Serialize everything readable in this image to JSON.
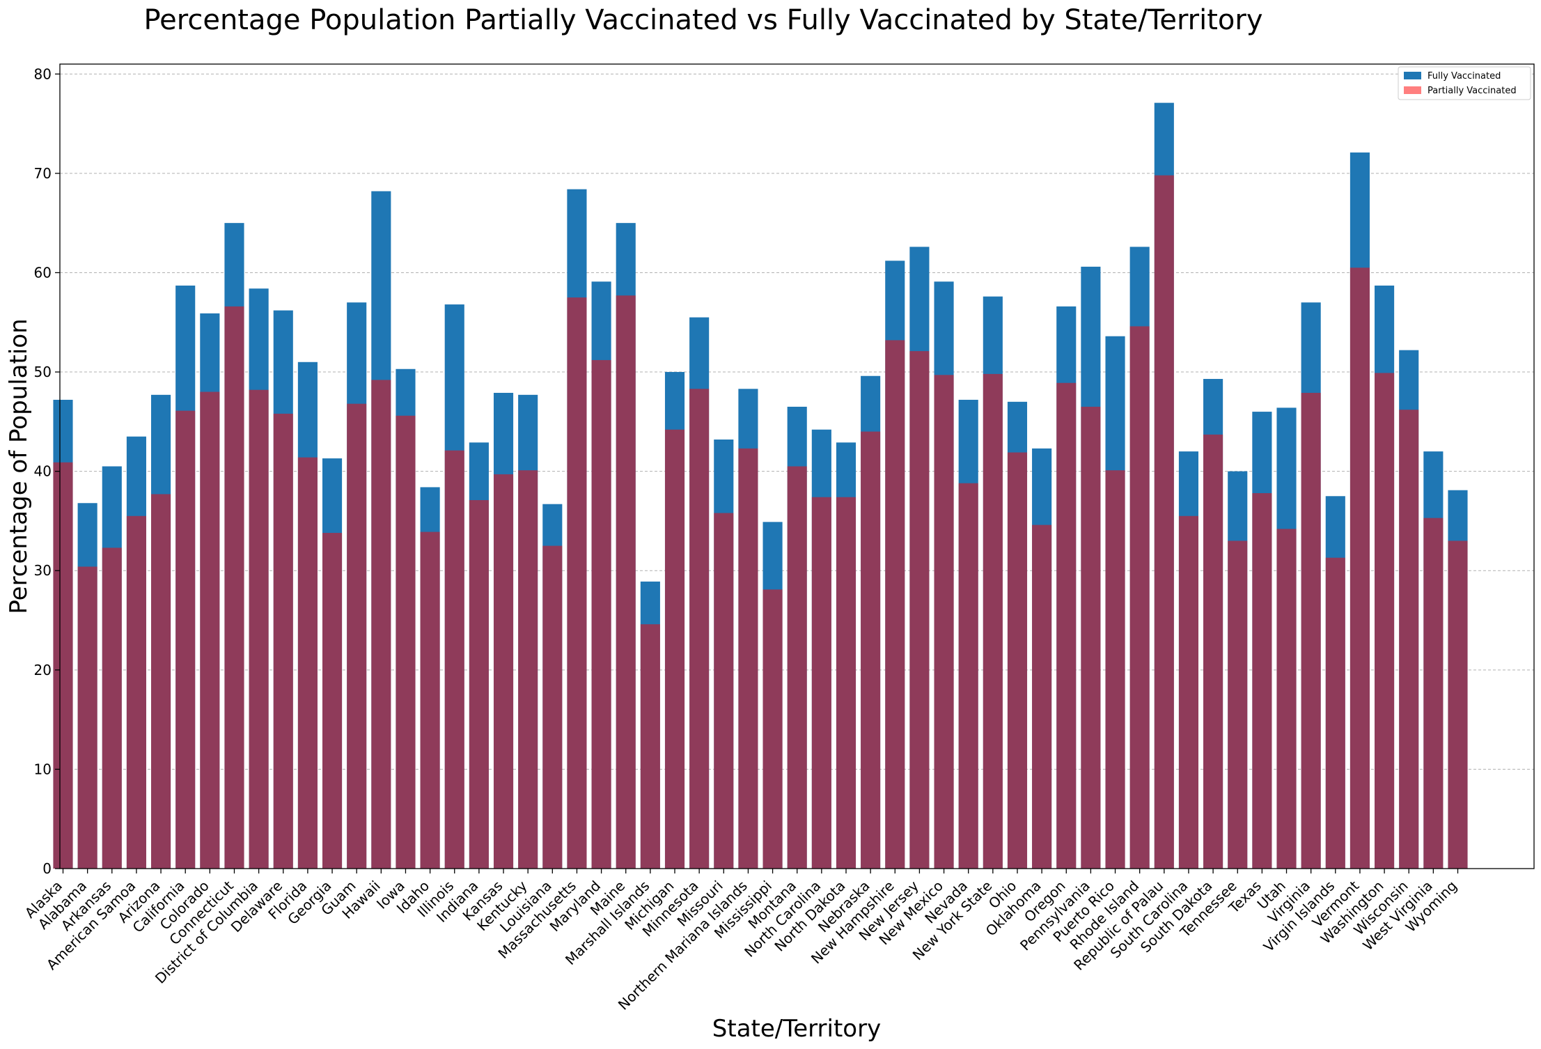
{
  "chart_data": {
    "type": "bar",
    "title": "Percentage Population Partially Vaccinated vs Fully Vaccinated by State/Territory",
    "xlabel": "State/Territory",
    "ylabel": "Percentage of Population",
    "ylim": [
      0,
      81
    ],
    "yticks": [
      0,
      10,
      20,
      30,
      40,
      50,
      60,
      70,
      80
    ],
    "grid": "y-dashed",
    "legend_position": "top-right",
    "colors": {
      "fully": "#1f77b4",
      "partially": "#ff0000",
      "partially_alpha": 0.5
    },
    "categories": [
      "Alaska",
      "Alabama",
      "Arkansas",
      "American Samoa",
      "Arizona",
      "California",
      "Colorado",
      "Connecticut",
      "District of Columbia",
      "Delaware",
      "Florida",
      "Georgia",
      "Guam",
      "Hawaii",
      "Iowa",
      "Idaho",
      "Illinois",
      "Indiana",
      "Kansas",
      "Kentucky",
      "Louisiana",
      "Massachusetts",
      "Maryland",
      "Maine",
      "Marshall Islands",
      "Michigan",
      "Minnesota",
      "Missouri",
      "Northern Mariana Islands",
      "Mississippi",
      "Montana",
      "North Carolina",
      "North Dakota",
      "Nebraska",
      "New Hampshire",
      "New Jersey",
      "New Mexico",
      "Nevada",
      "New York State",
      "Ohio",
      "Oklahoma",
      "Oregon",
      "Pennsylvania",
      "Puerto Rico",
      "Rhode Island",
      "Republic of Palau",
      "South Carolina",
      "South Dakota",
      "Tennessee",
      "Texas",
      "Utah",
      "Virginia",
      "Virgin Islands",
      "Vermont",
      "Washington",
      "Wisconsin",
      "West Virginia",
      "Wyoming"
    ],
    "series": [
      {
        "name": "Fully Vaccinated",
        "values": [
          47.2,
          36.8,
          40.5,
          43.5,
          47.7,
          58.7,
          55.9,
          65.0,
          58.4,
          56.2,
          51.0,
          41.3,
          57.0,
          68.2,
          50.3,
          38.4,
          56.8,
          42.9,
          47.9,
          47.7,
          36.7,
          68.4,
          59.1,
          65.0,
          28.9,
          50.0,
          55.5,
          43.2,
          48.3,
          34.9,
          46.5,
          44.2,
          42.9,
          49.6,
          61.2,
          62.6,
          59.1,
          47.2,
          57.6,
          47.0,
          42.3,
          56.6,
          60.6,
          53.6,
          62.6,
          77.1,
          42.0,
          49.3,
          40.0,
          46.0,
          46.4,
          57.0,
          37.5,
          72.1,
          58.7,
          52.2,
          42.0,
          38.1
        ]
      },
      {
        "name": "Partially Vaccinated",
        "values": [
          40.9,
          30.4,
          32.3,
          35.5,
          37.7,
          46.1,
          48.0,
          56.6,
          48.2,
          45.8,
          41.4,
          33.8,
          46.8,
          49.2,
          45.6,
          33.9,
          42.1,
          37.1,
          39.7,
          40.1,
          32.5,
          57.5,
          51.2,
          57.7,
          24.6,
          44.2,
          48.3,
          35.8,
          42.3,
          28.1,
          40.5,
          37.4,
          37.4,
          44.0,
          53.2,
          52.1,
          49.7,
          38.8,
          49.8,
          41.9,
          34.6,
          48.9,
          46.5,
          40.1,
          54.6,
          69.8,
          35.5,
          43.7,
          33.0,
          37.8,
          34.2,
          47.9,
          31.3,
          60.5,
          49.9,
          46.2,
          35.3,
          33.0
        ]
      }
    ]
  }
}
